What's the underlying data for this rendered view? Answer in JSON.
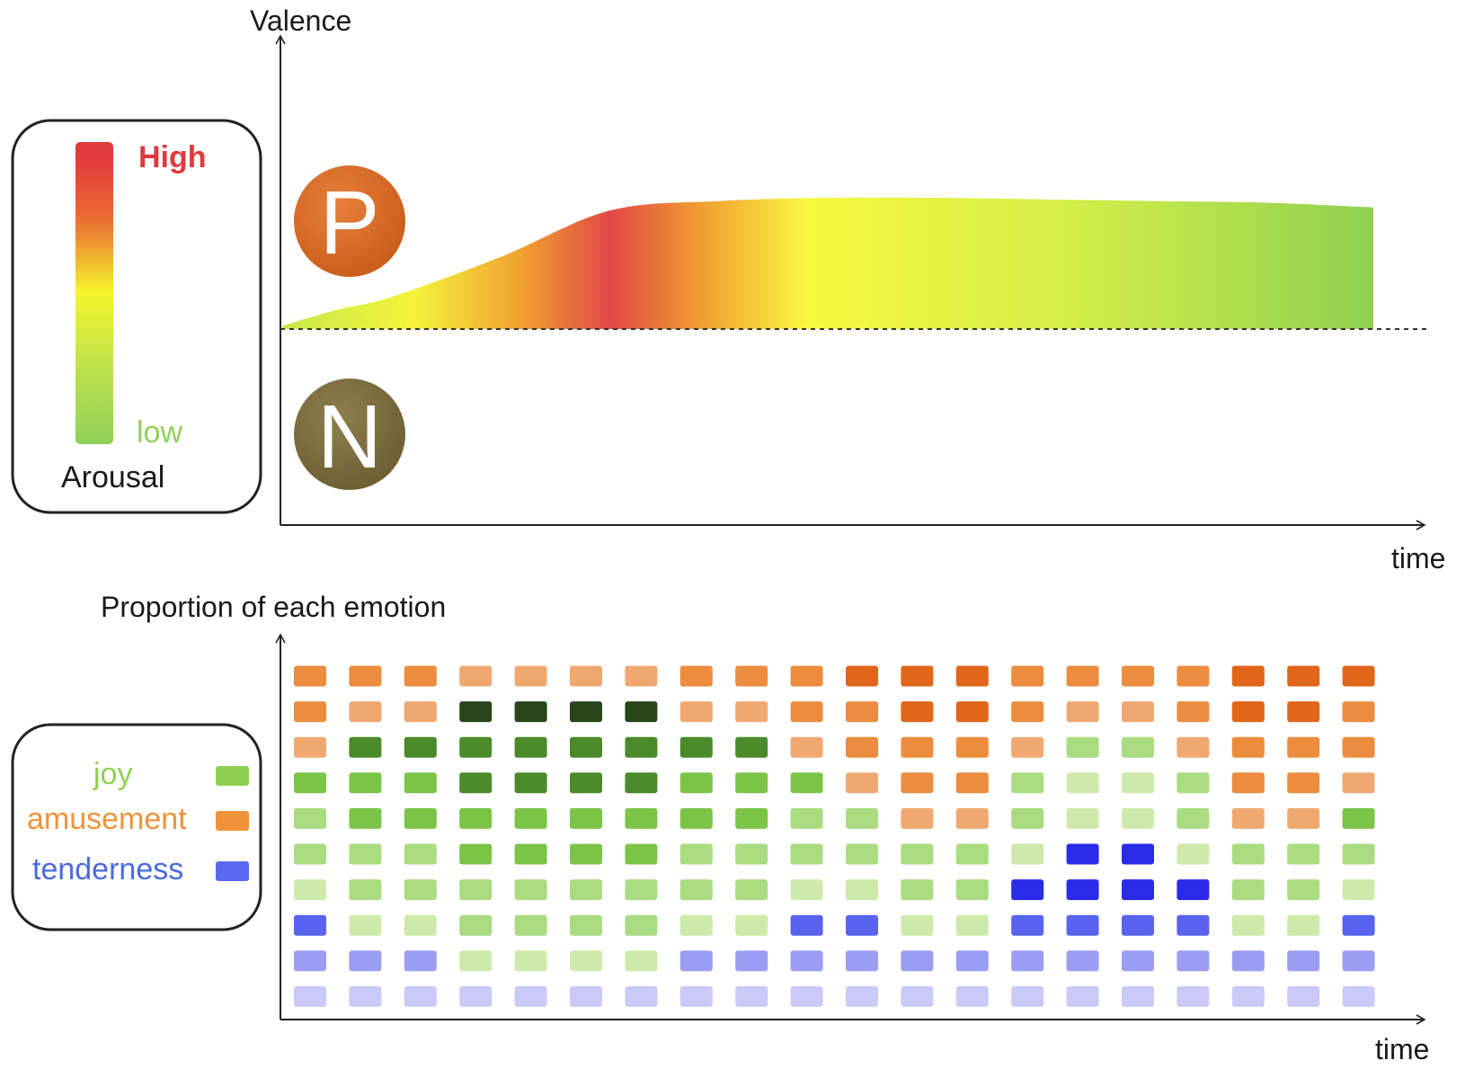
{
  "top_panel": {
    "y_label": "Valence",
    "x_label": "time",
    "positive_badge": {
      "letter": "P",
      "color": "#d9661a"
    },
    "negative_badge": {
      "letter": "N",
      "color": "#7a6a3a"
    },
    "arousal_legend": {
      "high_label": "High",
      "low_label": "low",
      "title": "Arousal",
      "high_color": "#e03a3a",
      "mid_color": "#f5f52a",
      "low_color": "#8fd05a"
    },
    "valence_curve": {
      "comment_units": "time and valence in normalized units (0-1)",
      "time": [
        0,
        0.05,
        0.1,
        0.2,
        0.3,
        0.4,
        0.5,
        0.6,
        0.7,
        0.8,
        0.9,
        1.0
      ],
      "valence": [
        0.02,
        0.12,
        0.2,
        0.45,
        0.74,
        0.8,
        0.82,
        0.82,
        0.81,
        0.8,
        0.79,
        0.76
      ],
      "arousal_color_stops": [
        {
          "t": 0.0,
          "color": "#c9e84a"
        },
        {
          "t": 0.12,
          "color": "#f4f43a"
        },
        {
          "t": 0.22,
          "color": "#f0a030"
        },
        {
          "t": 0.3,
          "color": "#e04848"
        },
        {
          "t": 0.38,
          "color": "#f09a30"
        },
        {
          "t": 0.48,
          "color": "#f8f840"
        },
        {
          "t": 0.72,
          "color": "#d4ee48"
        },
        {
          "t": 1.0,
          "color": "#8fd050"
        }
      ]
    }
  },
  "bottom_panel": {
    "y_label": "Proportion of each emotion",
    "x_label": "time",
    "legend": [
      {
        "label": "joy",
        "color": "#8fd050",
        "text_color": "#8fd050"
      },
      {
        "label": "amusement",
        "color": "#f0923a",
        "text_color": "#f0923a"
      },
      {
        "label": "tenderness",
        "color": "#5a6af0",
        "text_color": "#4a6ae0"
      }
    ],
    "palette": {
      "a1": "#f5c4a0",
      "a2": "#f0a870",
      "a3": "#ec8c3e",
      "a4": "#e0661a",
      "g1": "#cdeaaa",
      "g2": "#a9dc80",
      "g3": "#7cc448",
      "g4": "#4a8a2a",
      "g5": "#28461a",
      "b1": "#c9caf7",
      "b2": "#9a9ef2",
      "b3": "#5a63ee",
      "b4": "#2a2ae8"
    },
    "grid_rows_top_to_bottom": [
      [
        "a3",
        "a3",
        "a3",
        "a2",
        "a2",
        "a2",
        "a2",
        "a3",
        "a3",
        "a3",
        "a4",
        "a4",
        "a4",
        "a3",
        "a3",
        "a3",
        "a3",
        "a4",
        "a4",
        "a4"
      ],
      [
        "a3",
        "a2",
        "a2",
        "g5",
        "g5",
        "g5",
        "g5",
        "a2",
        "a2",
        "a3",
        "a3",
        "a4",
        "a4",
        "a3",
        "a2",
        "a2",
        "a3",
        "a4",
        "a4",
        "a3"
      ],
      [
        "a2",
        "g4",
        "g4",
        "g4",
        "g4",
        "g4",
        "g4",
        "g4",
        "g4",
        "a2",
        "a3",
        "a3",
        "a3",
        "a2",
        "g2",
        "g2",
        "a2",
        "a3",
        "a3",
        "a3"
      ],
      [
        "g3",
        "g3",
        "g3",
        "g4",
        "g4",
        "g4",
        "g4",
        "g3",
        "g3",
        "g3",
        "a2",
        "a3",
        "a3",
        "g2",
        "g1",
        "g1",
        "g2",
        "a3",
        "a3",
        "a2"
      ],
      [
        "g2",
        "g3",
        "g3",
        "g3",
        "g3",
        "g3",
        "g3",
        "g3",
        "g3",
        "g2",
        "g2",
        "a2",
        "a2",
        "g2",
        "g1",
        "g1",
        "g2",
        "a2",
        "a2",
        "g3"
      ],
      [
        "g2",
        "g2",
        "g2",
        "g3",
        "g3",
        "g3",
        "g3",
        "g2",
        "g2",
        "g2",
        "g2",
        "g2",
        "g2",
        "g1",
        "b4",
        "b4",
        "g1",
        "g2",
        "g2",
        "g2"
      ],
      [
        "g1",
        "g2",
        "g2",
        "g2",
        "g2",
        "g2",
        "g2",
        "g2",
        "g2",
        "g1",
        "g1",
        "g2",
        "g2",
        "b4",
        "b4",
        "b4",
        "b4",
        "g2",
        "g2",
        "g1"
      ],
      [
        "b3",
        "g1",
        "g1",
        "g2",
        "g2",
        "g2",
        "g2",
        "g1",
        "g1",
        "b3",
        "b3",
        "g1",
        "g1",
        "b3",
        "b3",
        "b3",
        "b3",
        "g1",
        "g1",
        "b3"
      ],
      [
        "b2",
        "b2",
        "b2",
        "g1",
        "g1",
        "g1",
        "g1",
        "b2",
        "b2",
        "b2",
        "b2",
        "b2",
        "b2",
        "b2",
        "b2",
        "b2",
        "b2",
        "b2",
        "b2",
        "b2"
      ],
      [
        "b1",
        "b1",
        "b1",
        "b1",
        "b1",
        "b1",
        "b1",
        "b1",
        "b1",
        "b1",
        "b1",
        "b1",
        "b1",
        "b1",
        "b1",
        "b1",
        "b1",
        "b1",
        "b1",
        "b1"
      ]
    ]
  }
}
